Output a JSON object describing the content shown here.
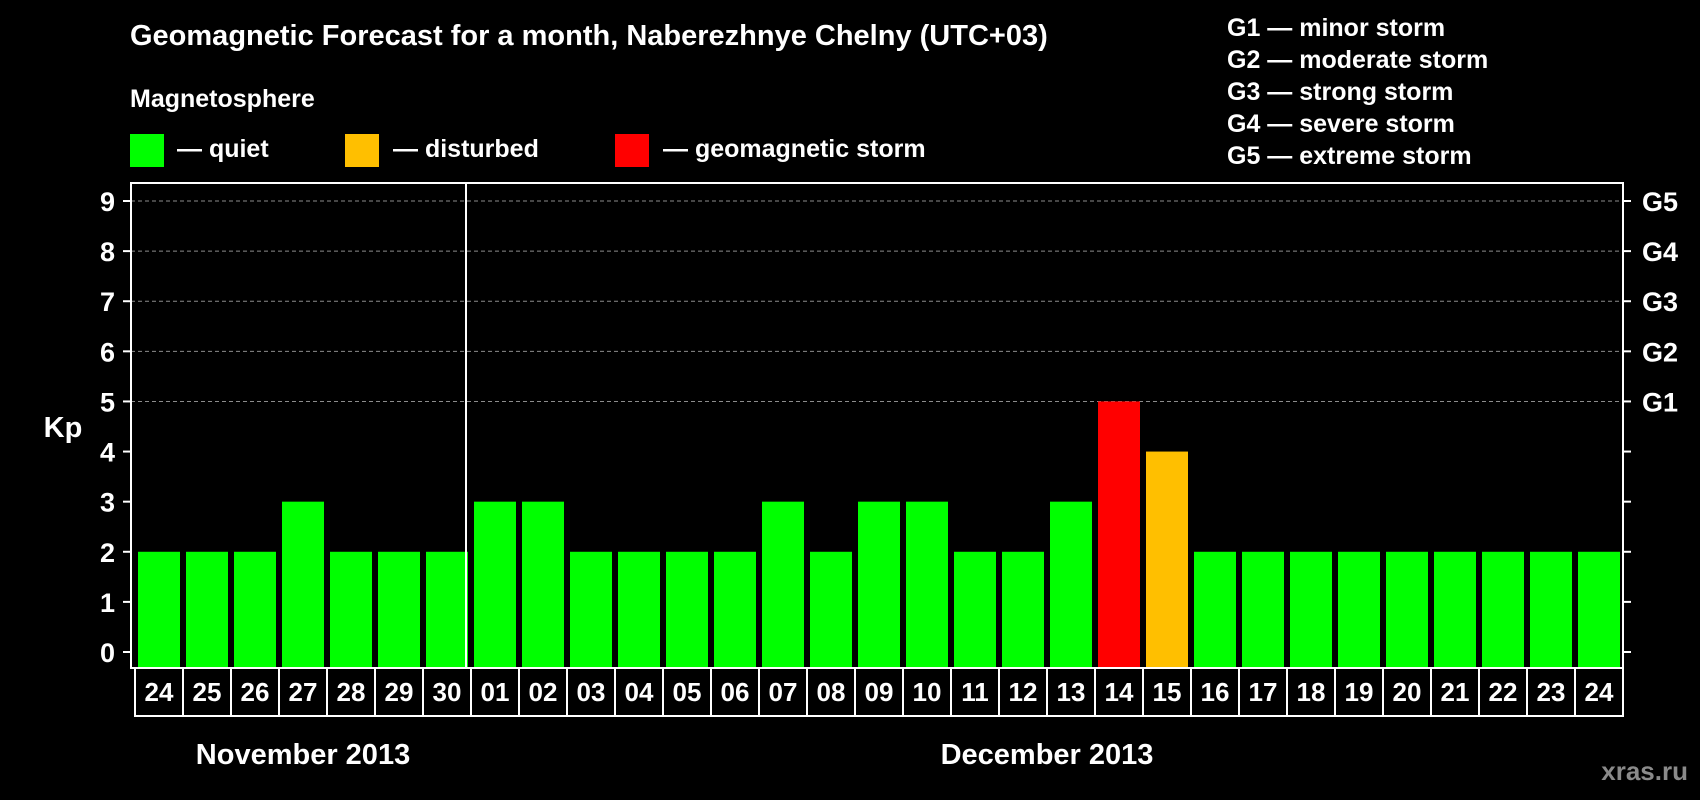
{
  "title": "Geomagnetic Forecast for a month, Naberezhnye Chelny (UTC+03)",
  "magnetosphere_label": "Magnetosphere",
  "legend": [
    {
      "label": "— quiet",
      "color": "#00ff00"
    },
    {
      "label": "— disturbed",
      "color": "#ffbf00"
    },
    {
      "label": "— geomagnetic storm",
      "color": "#ff0000"
    }
  ],
  "g_levels": [
    "G1 — minor storm",
    "G2 — moderate storm",
    "G3 — strong storm",
    "G4 — severe storm",
    "G5 — extreme storm"
  ],
  "watermark": "xras.ru",
  "chart_data": {
    "type": "bar",
    "ylabel": "Kp",
    "ylim": [
      0,
      9
    ],
    "yticks": [
      "0",
      "1",
      "2",
      "3",
      "4",
      "5",
      "6",
      "7",
      "8",
      "9"
    ],
    "right_ticks": [
      {
        "value": 5,
        "label": "G1"
      },
      {
        "value": 6,
        "label": "G2"
      },
      {
        "value": 7,
        "label": "G3"
      },
      {
        "value": 8,
        "label": "G4"
      },
      {
        "value": 9,
        "label": "G5"
      }
    ],
    "grid": true,
    "categories": [
      "24",
      "25",
      "26",
      "27",
      "28",
      "29",
      "30",
      "01",
      "02",
      "03",
      "04",
      "05",
      "06",
      "07",
      "08",
      "09",
      "10",
      "11",
      "12",
      "13",
      "14",
      "15",
      "16",
      "17",
      "18",
      "19",
      "20",
      "21",
      "22",
      "23",
      "24"
    ],
    "values": [
      2,
      2,
      2,
      3,
      2,
      2,
      2,
      3,
      3,
      2,
      2,
      2,
      2,
      3,
      2,
      3,
      3,
      2,
      2,
      3,
      5,
      4,
      2,
      2,
      2,
      2,
      2,
      2,
      2,
      2,
      2
    ],
    "colors": {
      "quiet": "#00ff00",
      "disturbed": "#ffbf00",
      "storm": "#ff0000"
    },
    "month_groups": [
      {
        "label": "November 2013",
        "start": 0,
        "end": 6
      },
      {
        "label": "December 2013",
        "start": 7,
        "end": 30
      }
    ]
  }
}
